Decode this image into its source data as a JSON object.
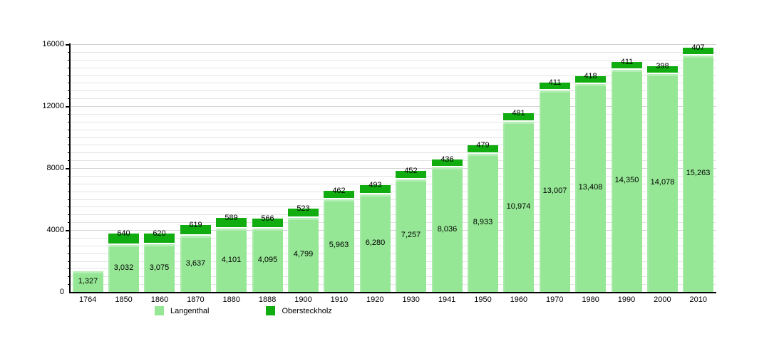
{
  "chart_data": {
    "type": "bar",
    "stacked": true,
    "title": "",
    "xlabel": "",
    "ylabel": "",
    "categories": [
      "1764",
      "1850",
      "1860",
      "1870",
      "1880",
      "1888",
      "1900",
      "1910",
      "1920",
      "1930",
      "1941",
      "1950",
      "1960",
      "1970",
      "1980",
      "1990",
      "2000",
      "2010"
    ],
    "series": [
      {
        "name": "Langenthal",
        "color": "#95e795",
        "values": [
          1327,
          3032,
          3075,
          3637,
          4101,
          4095,
          4799,
          5963,
          6280,
          7257,
          8036,
          8933,
          10974,
          13007,
          13408,
          14350,
          14078,
          15263
        ]
      },
      {
        "name": "Obersteckholz",
        "color": "#10ac10",
        "values": [
          null,
          640,
          620,
          619,
          589,
          566,
          523,
          462,
          493,
          452,
          436,
          479,
          481,
          411,
          418,
          411,
          398,
          407
        ]
      }
    ],
    "bar_value_labels": true,
    "ylim": [
      0,
      16000
    ],
    "ytick_major_interval": 4000,
    "ytick_minor_interval": 500,
    "ytick_labels": [
      "0",
      "4000",
      "8000",
      "12000",
      "16000"
    ],
    "grid": "horizontal",
    "legend": {
      "position": "bottom-left",
      "entries": [
        {
          "label": "Langenthal",
          "color": "#95e795"
        },
        {
          "label": "Obersteckholz",
          "color": "#10ac10"
        }
      ]
    }
  },
  "colors": {
    "background": "#ffffff",
    "grid_minor": "#e4e4e4",
    "grid_major": "#d2d2d2",
    "axis": "#000000",
    "text": "#000000"
  }
}
